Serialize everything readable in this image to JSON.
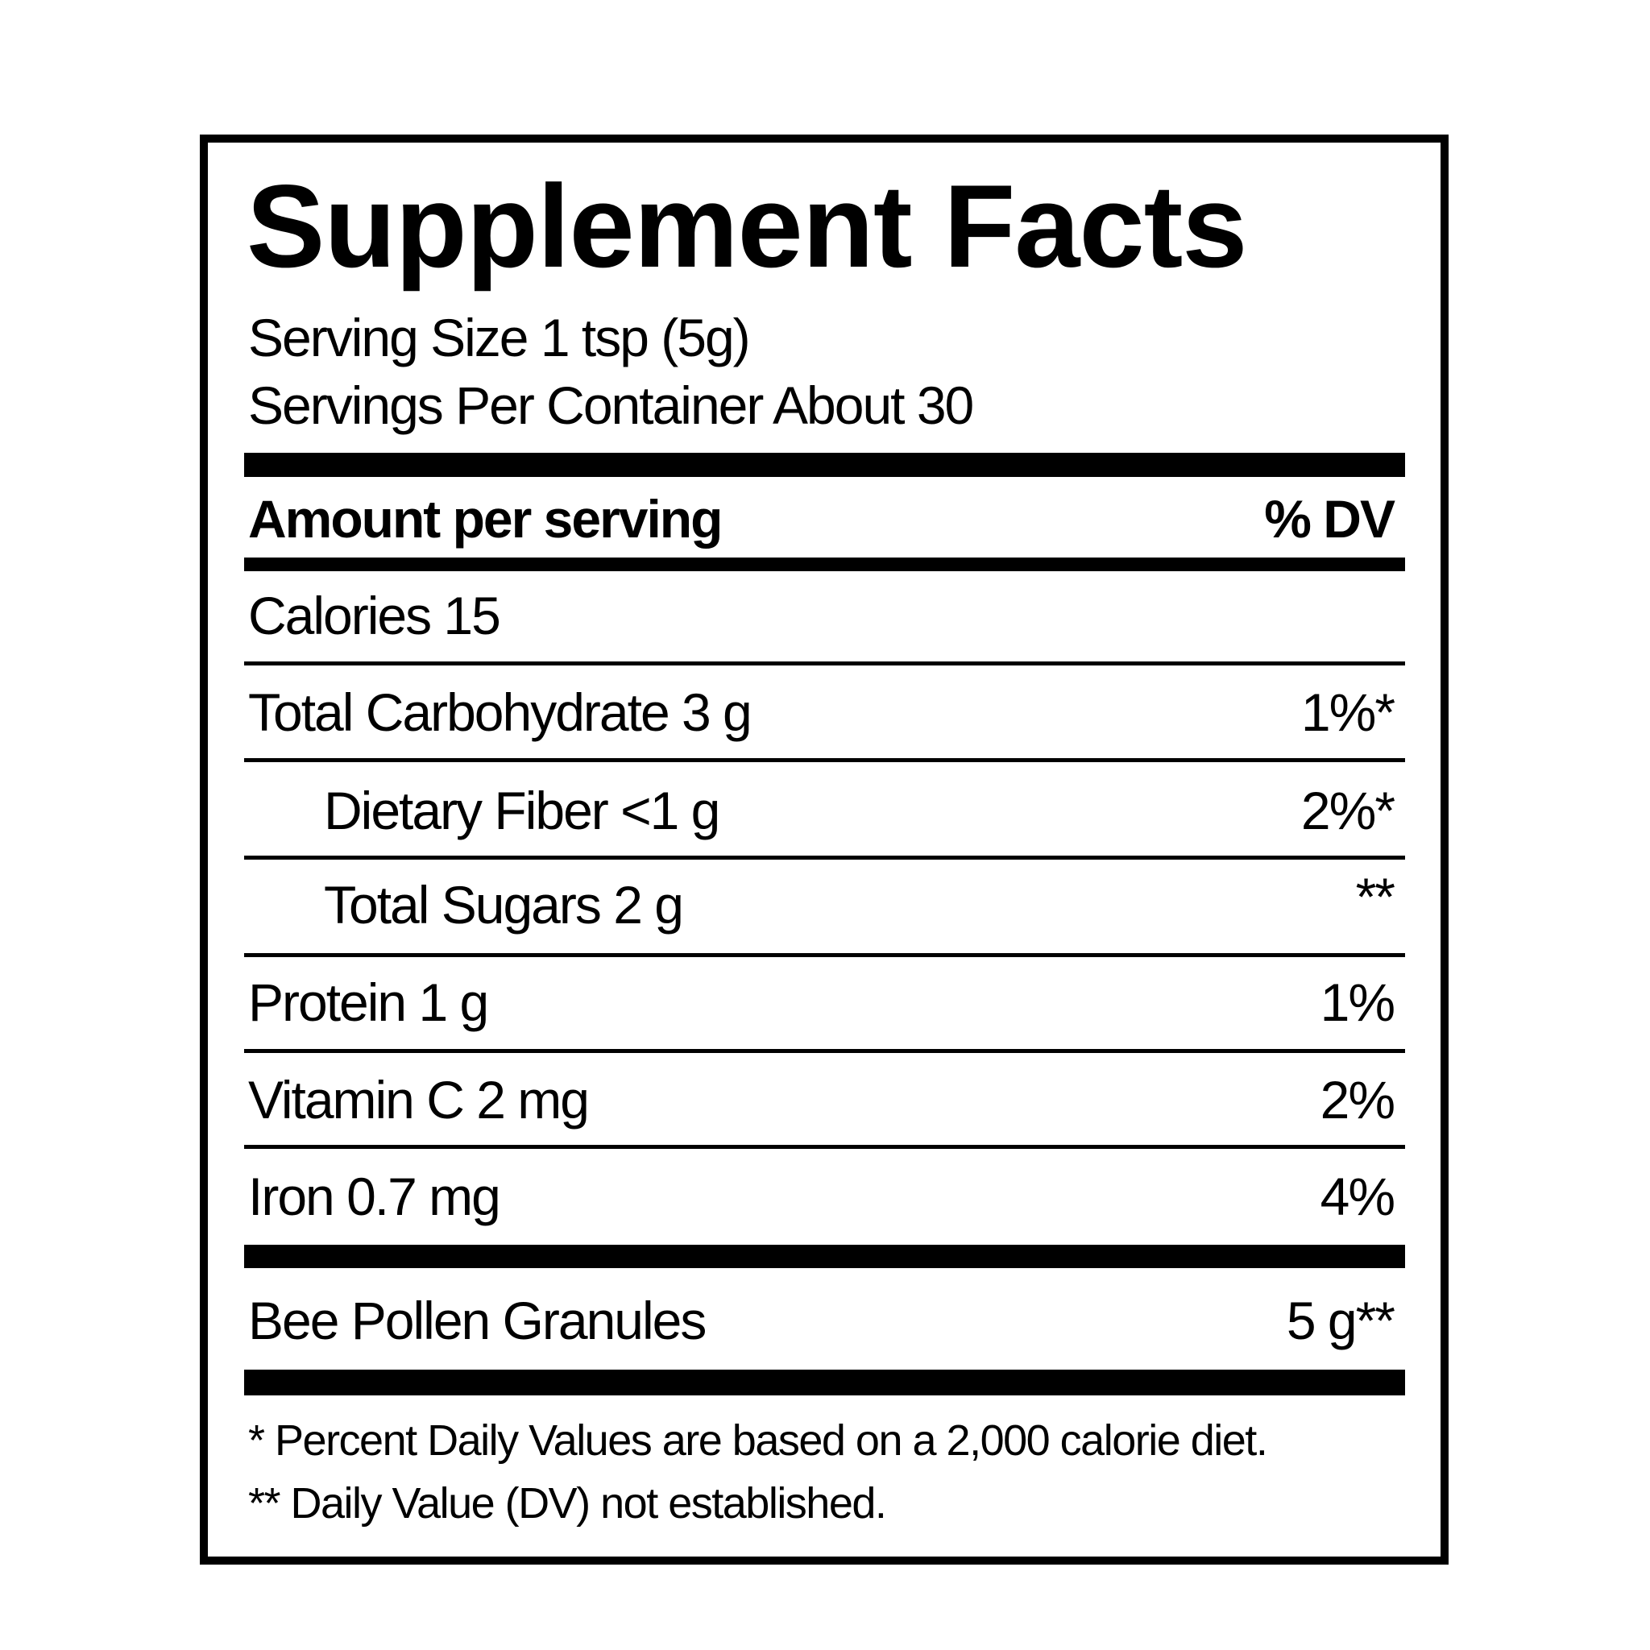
{
  "title": "Supplement Facts",
  "serving_size": "Serving Size 1 tsp (5g)",
  "servings_per_container": "Servings Per Container About 30",
  "header": {
    "amount_label": "Amount per serving",
    "dv_label": "% DV"
  },
  "calories": "Calories 15",
  "rows": [
    {
      "label": "Total Carbohydrate 3 g",
      "dv": "1%*"
    },
    {
      "label": "Dietary Fiber  <1 g",
      "dv": "2%*"
    },
    {
      "label": "Total Sugars 2 g",
      "dv": "**"
    },
    {
      "label": "Protein 1 g",
      "dv": "1%"
    },
    {
      "label": "Vitamin C 2 mg",
      "dv": "2%"
    },
    {
      "label": "Iron 0.7 mg",
      "dv": "4%"
    }
  ],
  "ingredient": {
    "label": "Bee Pollen Granules",
    "amount": "5 g**"
  },
  "footnotes": [
    "* Percent Daily Values are based on a 2,000 calorie diet.",
    "** Daily Value (DV) not established."
  ]
}
